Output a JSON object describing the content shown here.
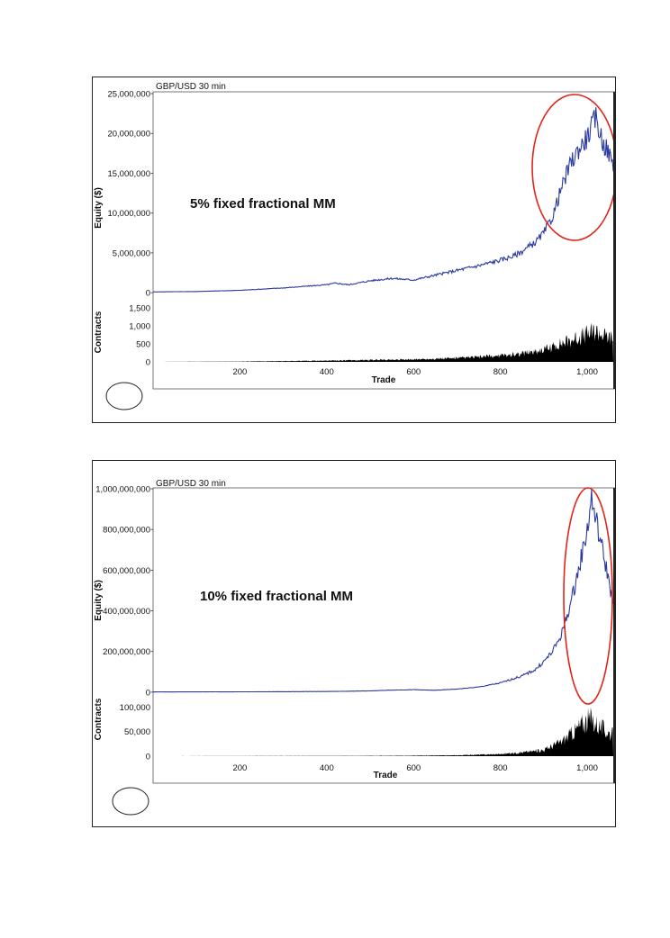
{
  "chart_data": [
    {
      "type": "line",
      "title": "GBP/USD 30 min",
      "annotation": "5% fixed fractional MM",
      "xlabel": "Trade",
      "ylabel": "Equity ($)",
      "ylabel2": "Contracts",
      "xlim": [
        0,
        1060
      ],
      "ylim": [
        -1000000,
        25000000
      ],
      "ylim2": [
        0,
        1500
      ],
      "xticks": [
        "200",
        "400",
        "600",
        "800",
        "1,000"
      ],
      "xtick_values": [
        200,
        400,
        600,
        800,
        1000
      ],
      "yticks": [
        "25,000,000",
        "20,000,000",
        "15,000,000",
        "10,000,000",
        "5,000,000",
        "0"
      ],
      "ytick_values": [
        25000000,
        20000000,
        15000000,
        10000000,
        5000000,
        0
      ],
      "yticks2": [
        "1,500",
        "1,000",
        "500",
        "0"
      ],
      "ytick2_values": [
        1500,
        1000,
        500,
        0
      ],
      "series": [
        {
          "name": "Equity",
          "color": "#2b3aa0",
          "x": [
            0,
            100,
            200,
            300,
            400,
            420,
            450,
            500,
            550,
            600,
            650,
            700,
            750,
            800,
            830,
            850,
            880,
            900,
            920,
            940,
            960,
            980,
            1000,
            1020,
            1035,
            1050,
            1060
          ],
          "values": [
            100000,
            150000,
            300000,
            600000,
            1000000,
            1200000,
            1000000,
            1500000,
            1800000,
            1600000,
            2200000,
            2800000,
            3400000,
            4100000,
            4600000,
            5200000,
            6300000,
            7500000,
            9500000,
            13000000,
            16000000,
            18000000,
            19500000,
            22000000,
            19000000,
            17500000,
            16000000
          ]
        },
        {
          "name": "Contracts",
          "color": "#000000",
          "x": [
            0,
            200,
            400,
            600,
            700,
            800,
            850,
            900,
            940,
            980,
            1000,
            1020,
            1040,
            1060
          ],
          "values": [
            0,
            10,
            40,
            80,
            120,
            200,
            280,
            400,
            600,
            800,
            900,
            1000,
            850,
            750
          ]
        }
      ],
      "highlight": {
        "shape": "ellipse",
        "color": "#e0261b",
        "label": ""
      }
    },
    {
      "type": "line",
      "title": "GBP/USD 30 min",
      "annotation": "10% fixed fractional MM",
      "xlabel": "Trade",
      "ylabel": "Equity ($)",
      "ylabel2": "Contracts",
      "xlim": [
        0,
        1060
      ],
      "ylim": [
        -5000000,
        1000000000
      ],
      "ylim2": [
        0,
        110000
      ],
      "xticks": [
        "200",
        "400",
        "600",
        "800",
        "1,000"
      ],
      "xtick_values": [
        200,
        400,
        600,
        800,
        1000
      ],
      "yticks": [
        "1,000,000,000",
        "800,000,000",
        "600,000,000",
        "400,000,000",
        "200,000,000",
        "0"
      ],
      "ytick_values": [
        1000000000,
        800000000,
        600000000,
        400000000,
        200000000,
        0
      ],
      "yticks2": [
        "100,000",
        "50,000",
        "0"
      ],
      "ytick2_values": [
        100000,
        50000,
        0
      ],
      "series": [
        {
          "name": "Equity",
          "color": "#2b3aa0",
          "x": [
            0,
            200,
            400,
            500,
            550,
            600,
            650,
            700,
            750,
            800,
            850,
            880,
            900,
            920,
            940,
            960,
            980,
            1000,
            1010,
            1020,
            1035,
            1050,
            1060
          ],
          "values": [
            1000000,
            1500000,
            3000000,
            6000000,
            10000000,
            12000000,
            9000000,
            15000000,
            25000000,
            45000000,
            80000000,
            110000000,
            150000000,
            200000000,
            280000000,
            420000000,
            600000000,
            800000000,
            950000000,
            850000000,
            700000000,
            550000000,
            430000000
          ]
        },
        {
          "name": "Contracts",
          "color": "#000000",
          "x": [
            0,
            400,
            600,
            700,
            800,
            850,
            900,
            940,
            970,
            990,
            1010,
            1030,
            1045,
            1060
          ],
          "values": [
            0,
            500,
            1000,
            2000,
            5000,
            9000,
            15000,
            35000,
            60000,
            80000,
            90000,
            70000,
            60000,
            50000
          ]
        }
      ],
      "highlight": {
        "shape": "ellipse",
        "color": "#e0261b",
        "label": ""
      }
    }
  ]
}
